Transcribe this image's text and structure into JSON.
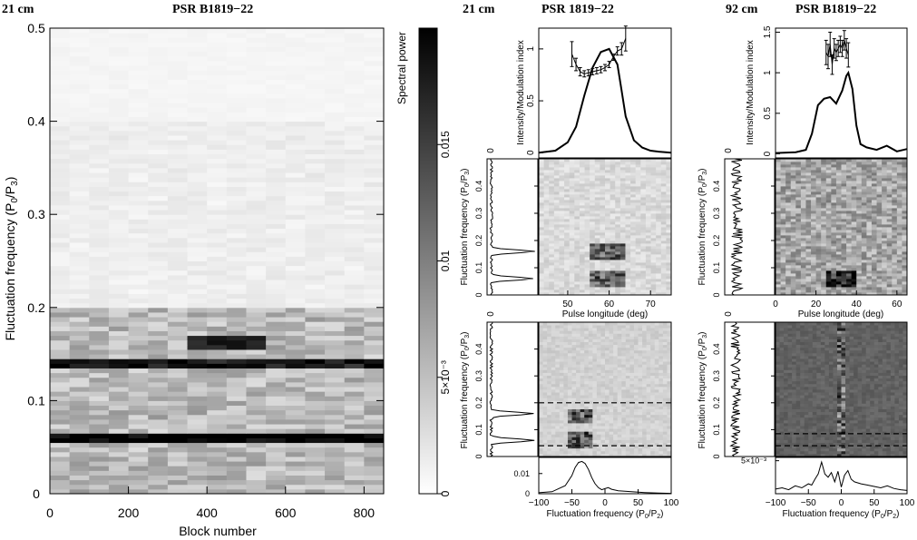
{
  "chart_data": [
    {
      "id": "left",
      "type": "heatmap",
      "title_left": "21 cm",
      "title": "PSR B1819−22",
      "xlabel": "Block number",
      "ylabel_main": "Fluctuation frequency (P",
      "ylabel_sub1": "0",
      "ylabel_mid": "/P",
      "ylabel_sub2": "3",
      "ylabel_end": ")",
      "xlim": [
        0,
        850
      ],
      "ylim": [
        0,
        0.5
      ],
      "xticks": [
        "0",
        "200",
        "400",
        "600",
        "800"
      ],
      "yticks": [
        "0",
        "0.1",
        "0.2",
        "0.3",
        "0.4",
        "0.5"
      ],
      "colorbar": {
        "label": "Spectral power",
        "range": [
          0,
          0.02
        ],
        "ticks": [
          "0",
          "5×10⁻³",
          "0.01",
          "0.015"
        ]
      },
      "features": [
        {
          "block_range": [
            0,
            850
          ],
          "frequency": 0.06,
          "note": "strong"
        },
        {
          "block_range": [
            350,
            540
          ],
          "frequency": 0.162
        },
        {
          "block_range": [
            0,
            850
          ],
          "frequency": 0.14
        }
      ]
    },
    {
      "id": "mid",
      "type": "panel-group",
      "title_left": "21 cm",
      "title": "PSR 1819−22",
      "profile": {
        "ylabel": "Intensity/Modulation index",
        "xlim": [
          43,
          75
        ],
        "ylim": [
          -0.05,
          1.2
        ],
        "yticks": [
          "0",
          "0.5",
          "1"
        ],
        "intensity": {
          "x": [
            43,
            47,
            50,
            52,
            54,
            56,
            58,
            60,
            62,
            63,
            64,
            66,
            68,
            70,
            72,
            75
          ],
          "y": [
            0.0,
            0.02,
            0.1,
            0.25,
            0.55,
            0.82,
            0.97,
            1.0,
            0.85,
            0.6,
            0.35,
            0.12,
            0.05,
            0.02,
            0.01,
            0.0
          ]
        },
        "modulation": {
          "x": [
            51,
            52,
            53,
            54,
            55,
            56,
            57,
            58,
            59,
            60,
            61,
            62,
            63,
            64
          ],
          "y": [
            0.95,
            0.85,
            0.78,
            0.76,
            0.77,
            0.78,
            0.79,
            0.8,
            0.82,
            0.85,
            0.92,
            0.98,
            1.0,
            1.1
          ],
          "err": [
            0.12,
            0.06,
            0.04,
            0.03,
            0.03,
            0.03,
            0.03,
            0.03,
            0.03,
            0.03,
            0.03,
            0.04,
            0.06,
            0.12
          ]
        }
      },
      "lrfs": {
        "xlabel": "Pulse longitude (deg)",
        "xlim": [
          43,
          75
        ],
        "xticks": [
          "50",
          "60",
          "70"
        ],
        "ylim": [
          0,
          0.5
        ],
        "features": [
          {
            "longitude_range": [
              55,
              64
            ],
            "frequency": 0.06
          },
          {
            "longitude_range": [
              55,
              64
            ],
            "frequency": 0.16
          }
        ]
      },
      "lrfs_side": {
        "ylabel_main": "Fluctuation frequency (P",
        "ylabel_sub1": "0",
        "ylabel_mid": "/P",
        "ylabel_sub2": "3",
        "ylabel_end": ")",
        "yticks": [
          "0",
          "0.1",
          "0.2",
          "0.3",
          "0.4"
        ],
        "top_tick": "0",
        "peaks": [
          {
            "frequency": 0.06
          },
          {
            "frequency": 0.16
          }
        ]
      },
      "2dfs": {
        "xlabel_main": "Fluctuation frequency (P",
        "xlabel_sub1": "0",
        "xlabel_mid": "/P",
        "xlabel_sub2": "2",
        "xlabel_end": ")",
        "xlim": [
          -100,
          100
        ],
        "xticks": [
          "−100",
          "−50",
          "0",
          "50",
          "100"
        ],
        "dashed_lines": [
          0.2,
          0.04
        ],
        "features": [
          {
            "p0_p2": -38,
            "frequency": 0.06
          },
          {
            "p0_p2": -38,
            "frequency": 0.15
          }
        ]
      },
      "2dfs_side": {
        "top_tick": "0",
        "yticks": [
          "0",
          "0.1",
          "0.2",
          "0.3",
          "0.4"
        ],
        "peaks": [
          {
            "frequency": 0.06
          },
          {
            "frequency": 0.16
          }
        ]
      },
      "2dfs_bottom": {
        "ylim": [
          0,
          0.018
        ],
        "yticks": [
          "0",
          "0.01"
        ],
        "x": [
          -100,
          -80,
          -60,
          -50,
          -45,
          -40,
          -35,
          -30,
          -25,
          -20,
          -15,
          -10,
          -5,
          0,
          5,
          10,
          20,
          40,
          60,
          80,
          100
        ],
        "y": [
          0.0005,
          0.001,
          0.004,
          0.009,
          0.013,
          0.0155,
          0.016,
          0.015,
          0.012,
          0.008,
          0.005,
          0.003,
          0.002,
          0.0025,
          0.003,
          0.0022,
          0.0015,
          0.001,
          0.0006,
          0.0003,
          0.0002
        ]
      }
    },
    {
      "id": "right",
      "type": "panel-group",
      "title_left": "92 cm",
      "title": "PSR B1819−22",
      "profile": {
        "ylabel": "Intensity/Modulation index",
        "xlim": [
          0,
          65
        ],
        "ylim": [
          -0.05,
          1.55
        ],
        "yticks": [
          "0",
          "0.5",
          "1",
          "1.5"
        ],
        "intensity": {
          "x": [
            0,
            10,
            15,
            18,
            21,
            24,
            27,
            30,
            33,
            35,
            36,
            38,
            40,
            42,
            45,
            50,
            55,
            60,
            65
          ],
          "y": [
            0.01,
            0.02,
            0.05,
            0.25,
            0.6,
            0.68,
            0.7,
            0.62,
            0.78,
            0.96,
            1.0,
            0.8,
            0.35,
            0.12,
            0.08,
            0.05,
            0.1,
            0.03,
            0.06
          ]
        },
        "modulation": {
          "x": [
            25,
            26,
            27,
            28,
            29,
            30,
            31,
            32,
            33,
            34,
            35,
            36
          ],
          "y": [
            1.25,
            1.2,
            1.35,
            1.1,
            1.3,
            1.25,
            1.3,
            1.35,
            1.3,
            1.4,
            1.3,
            1.22
          ],
          "err": [
            0.15,
            0.15,
            0.15,
            0.12,
            0.12,
            0.1,
            0.1,
            0.1,
            0.1,
            0.12,
            0.12,
            0.15
          ]
        }
      },
      "lrfs": {
        "xlabel": "Pulse longitude (deg)",
        "xlim": [
          0,
          65
        ],
        "xticks": [
          "0",
          "20",
          "40",
          "60"
        ],
        "ylim": [
          0,
          0.5
        ],
        "features": [
          {
            "longitude_range": [
              25,
              40
            ],
            "frequency": 0.06
          }
        ]
      },
      "lrfs_side": {
        "ylabel_main": "Fluctuation frequency (P",
        "ylabel_sub1": "0",
        "ylabel_mid": "/P",
        "ylabel_sub2": "3",
        "ylabel_end": ")",
        "yticks": [
          "0",
          "0.1",
          "0.2",
          "0.3",
          "0.4"
        ],
        "top_tick": "0"
      },
      "2dfs": {
        "xlabel_main": "Fluctuation frequency (P",
        "xlabel_sub1": "0",
        "xlabel_mid": "/P",
        "xlabel_sub2": "2",
        "xlabel_end": ")",
        "xlim": [
          -100,
          100
        ],
        "xticks": [
          "−100",
          "−50",
          "0",
          "50",
          "100"
        ],
        "dashed_lines": [
          0.085,
          0.04
        ]
      },
      "2dfs_side": {
        "top_tick": "0",
        "yticks": [
          "0",
          "0.1",
          "0.2",
          "0.3",
          "0.4"
        ]
      },
      "2dfs_bottom": {
        "ylim": [
          0,
          0.0055
        ],
        "yticks": [
          "5×10⁻³"
        ],
        "x": [
          -100,
          -90,
          -80,
          -70,
          -60,
          -50,
          -45,
          -40,
          -35,
          -30,
          -25,
          -20,
          -15,
          -10,
          -5,
          0,
          5,
          10,
          15,
          20,
          30,
          40,
          50,
          60,
          70,
          80,
          90,
          100
        ],
        "y": [
          0.0007,
          0.0009,
          0.0006,
          0.0012,
          0.0009,
          0.0015,
          0.0013,
          0.0022,
          0.003,
          0.0048,
          0.003,
          0.0025,
          0.0032,
          0.0018,
          0.0034,
          0.001,
          0.0028,
          0.0035,
          0.0022,
          0.0018,
          0.0015,
          0.0013,
          0.0011,
          0.0009,
          0.0012,
          0.0008,
          0.0006,
          0.0005
        ]
      }
    }
  ]
}
